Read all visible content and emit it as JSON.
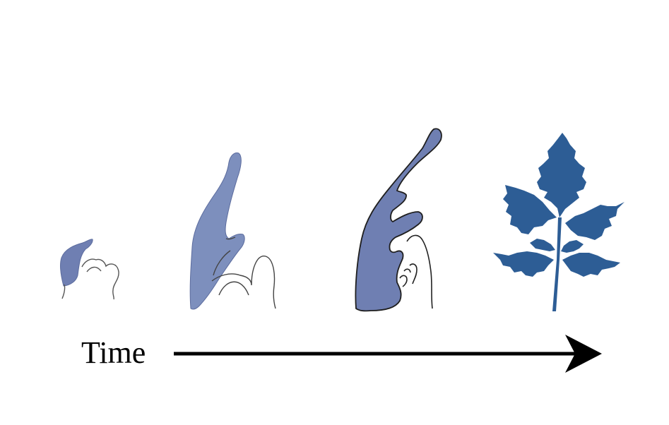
{
  "diagram": {
    "time_label": "Time",
    "stages": [
      {
        "name": "stage-1-primordium"
      },
      {
        "name": "stage-2-elongation"
      },
      {
        "name": "stage-3-leaflet-initiation"
      },
      {
        "name": "stage-4-mature-leaf"
      }
    ],
    "colors": {
      "primordium_blue": "#6f7fb2",
      "primordium_blue_light": "#7d8fbd",
      "mature_leaf_blue": "#2d5d95",
      "outline": "#222222",
      "arrow": "#000000"
    },
    "icons": [
      "arrow-right-icon"
    ]
  }
}
